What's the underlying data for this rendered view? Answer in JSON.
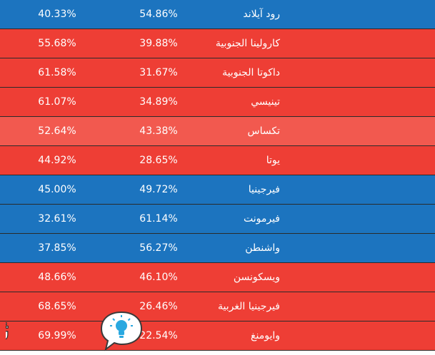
{
  "rows": [
    {
      "col1": "40.33%",
      "col2": "54.86%",
      "state": "رود آيلاند",
      "color": "#1c74bf"
    },
    {
      "col1": "55.68%",
      "col2": "39.88%",
      "state": "كارولينا الجنوبية",
      "color": "#ee3e35"
    },
    {
      "col1": "61.58%",
      "col2": "31.67%",
      "state": "داكوتا الجنوبية",
      "color": "#ee3e35"
    },
    {
      "col1": "61.07%",
      "col2": "34.89%",
      "state": "تينيسي",
      "color": "#ee3e35"
    },
    {
      "col1": "52.64%",
      "col2": "43.38%",
      "state": "تكساس",
      "color": "#f2594f"
    },
    {
      "col1": "44.92%",
      "col2": "28.65%",
      "state": "يوتا",
      "color": "#ee3e35"
    },
    {
      "col1": "45.00%",
      "col2": "49.72%",
      "state": "فيرجينيا",
      "color": "#1c74bf"
    },
    {
      "col1": "32.61%",
      "col2": "61.14%",
      "state": "فيرمونت",
      "color": "#1c74bf"
    },
    {
      "col1": "37.85%",
      "col2": "56.27%",
      "state": "واشنطن",
      "color": "#1c74bf"
    },
    {
      "col1": "48.66%",
      "col2": "46.10%",
      "state": "ويسكونسن",
      "color": "#ee3e35"
    },
    {
      "col1": "68.65%",
      "col2": "26.46%",
      "state": "فيرجينيا الغربية",
      "color": "#ee3e35"
    },
    {
      "col1": "69.99%",
      "col2": "22.54%",
      "state": "وايومنغ",
      "color": "#ee3e35"
    }
  ],
  "watermark": {
    "text": "ثقفني",
    "icon": "lightbulb-icon"
  }
}
